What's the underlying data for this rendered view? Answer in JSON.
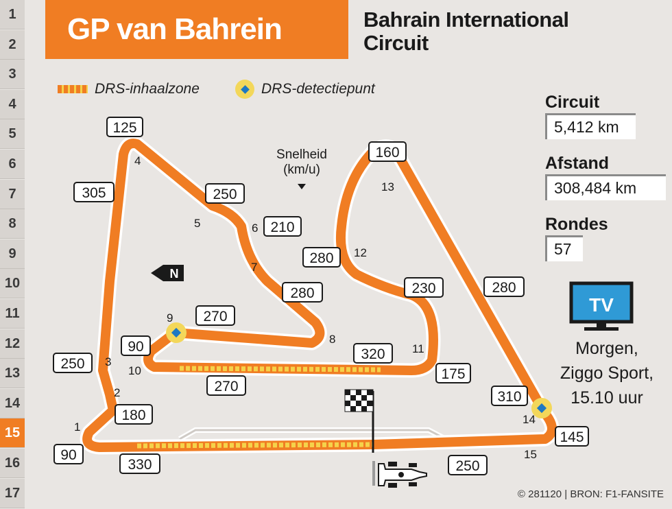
{
  "row_numbers": [
    "1",
    "2",
    "3",
    "4",
    "5",
    "6",
    "7",
    "8",
    "9",
    "10",
    "11",
    "12",
    "13",
    "14",
    "15",
    "16",
    "17"
  ],
  "active_row": "15",
  "title": "GP van Bahrein",
  "subtitle_line1": "Bahrain International",
  "subtitle_line2": "Circuit",
  "legend": {
    "drs_zone": "DRS-inhaalzone",
    "drs_detection": "DRS-detectiepunt"
  },
  "speed_label_line1": "Snelheid",
  "speed_label_line2": "(km/u)",
  "north_label": "N",
  "stats": {
    "circuit_label": "Circuit",
    "circuit_value": "5,412 km",
    "distance_label": "Afstand",
    "distance_value": "308,484 km",
    "laps_label": "Rondes",
    "laps_value": "57"
  },
  "tv": {
    "icon_text": "TV",
    "line1": "Morgen,",
    "line2": "Ziggo Sport,",
    "line3": "15.10 uur"
  },
  "credit": "© 281120 | BRON: F1-FANSITE",
  "turn_numbers": [
    "1",
    "2",
    "3",
    "4",
    "5",
    "6",
    "7",
    "8",
    "9",
    "10",
    "11",
    "12",
    "13",
    "14",
    "15"
  ],
  "speeds": [
    "125",
    "305",
    "250",
    "210",
    "280",
    "270",
    "90",
    "250",
    "180",
    "90",
    "330",
    "270",
    "320",
    "160",
    "280",
    "230",
    "175",
    "280",
    "310",
    "145",
    "250"
  ],
  "colors": {
    "track": "#f07d23",
    "track_outline": "#ffffff",
    "drs": "#f5d24a",
    "detection": "#f3d75a",
    "detection_dot": "#1e78c2",
    "tv": "#2f9ad6"
  }
}
